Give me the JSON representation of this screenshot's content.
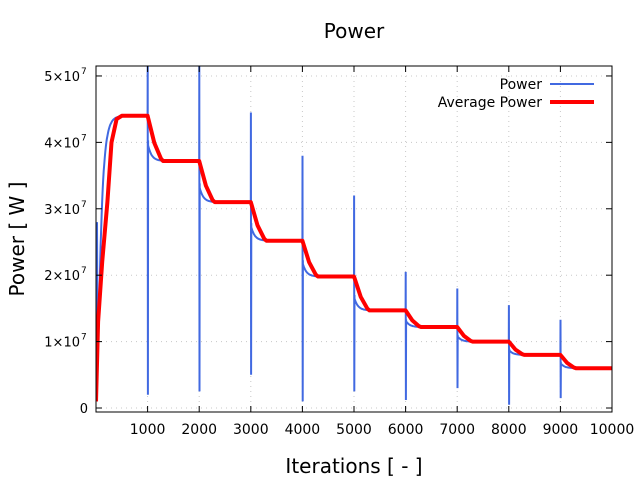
{
  "chart_data": {
    "type": "line",
    "title": "Power",
    "xlabel": "Iterations [ - ]",
    "ylabel": "Power [ W ]",
    "xlim": [
      0,
      10000
    ],
    "ylim": [
      -600000,
      51500000
    ],
    "xticks": [
      1000,
      2000,
      3000,
      4000,
      5000,
      6000,
      7000,
      8000,
      9000,
      10000
    ],
    "xtick_labels": [
      "1000",
      "2000",
      "3000",
      "4000",
      "5000",
      "6000",
      "7000",
      "8000",
      "9000",
      "10000"
    ],
    "yticks": [
      0,
      10000000,
      20000000,
      30000000,
      40000000,
      50000000
    ],
    "ytick_labels": [
      {
        "base": "0",
        "exp": ""
      },
      {
        "base": "1×10",
        "exp": "7"
      },
      {
        "base": "2×10",
        "exp": "7"
      },
      {
        "base": "3×10",
        "exp": "7"
      },
      {
        "base": "4×10",
        "exp": "7"
      },
      {
        "base": "5×10",
        "exp": "7"
      }
    ],
    "grid": true,
    "legend_position": "top-right",
    "series": [
      {
        "name": "Power",
        "color": "#4169e1",
        "plateaus": [
          44000000,
          37200000,
          31000000,
          25200000,
          19800000,
          14700000,
          12200000,
          10000000,
          8000000,
          6000000
        ],
        "spike_iterations": [
          1000,
          2000,
          3000,
          4000,
          5000,
          6000,
          7000,
          8000,
          9000
        ],
        "spike_max": [
          53000000,
          51500000,
          44500000,
          38000000,
          32000000,
          20500000,
          18000000,
          15500000,
          13300000
        ],
        "spike_min": [
          2000000,
          2500000,
          5000000,
          1000000,
          2500000,
          1200000,
          3000000,
          500000,
          1500000
        ],
        "initial_spike": 28000000
      },
      {
        "name": "Average Power",
        "color": "#ff0000"
      }
    ]
  }
}
